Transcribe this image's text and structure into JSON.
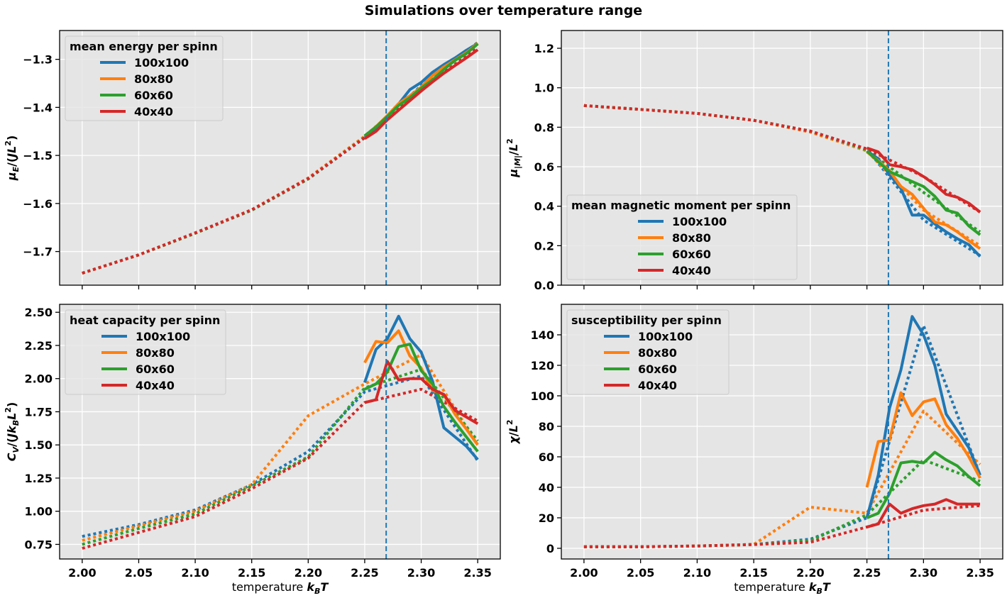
{
  "title": "Simulations over temperature range",
  "colors": {
    "series": [
      "#1f77b4",
      "#ff7f0e",
      "#2ca02c",
      "#d62728"
    ],
    "axes_bg": "#e5e5e5",
    "grid": "#ffffff",
    "vline": "#1f77b4"
  },
  "chart_data": [
    {
      "type": "line",
      "legend_title": "mean energy per spinn",
      "legend_loc": "upper-left",
      "xlabel": "",
      "ylabel": "μ_E/(JL²)",
      "xlim": [
        1.98,
        2.37
      ],
      "ylim": [
        -1.77,
        -1.24
      ],
      "xticks": [
        2.0,
        2.05,
        2.1,
        2.15,
        2.2,
        2.25,
        2.3,
        2.35
      ],
      "xtick_labels_shown": false,
      "yticks": [
        -1.7,
        -1.6,
        -1.5,
        -1.4,
        -1.3
      ],
      "ytick_labels": [
        "−1.7",
        "−1.6",
        "−1.5",
        "−1.4",
        "−1.3"
      ],
      "vline_x": 2.269,
      "grid": true,
      "solid_x": [
        2.25,
        2.26,
        2.27,
        2.28,
        2.29,
        2.3,
        2.31,
        2.32,
        2.33,
        2.34,
        2.35
      ],
      "solid": [
        {
          "name": "100x100",
          "values": [
            -1.462,
            -1.443,
            -1.418,
            -1.393,
            -1.363,
            -1.348,
            -1.327,
            -1.311,
            -1.297,
            -1.281,
            -1.267
          ]
        },
        {
          "name": "80x80",
          "values": [
            -1.46,
            -1.44,
            -1.417,
            -1.392,
            -1.376,
            -1.358,
            -1.334,
            -1.316,
            -1.301,
            -1.286,
            -1.267
          ]
        },
        {
          "name": "60x60",
          "values": [
            -1.459,
            -1.441,
            -1.419,
            -1.396,
            -1.38,
            -1.36,
            -1.343,
            -1.321,
            -1.302,
            -1.288,
            -1.268
          ]
        },
        {
          "name": "40x40",
          "values": [
            -1.465,
            -1.45,
            -1.426,
            -1.406,
            -1.386,
            -1.366,
            -1.347,
            -1.329,
            -1.313,
            -1.297,
            -1.28
          ]
        }
      ],
      "dotted_x": [
        2.0,
        2.05,
        2.1,
        2.15,
        2.2,
        2.25,
        2.3,
        2.35
      ],
      "dotted": [
        {
          "values": [
            -1.745,
            -1.707,
            -1.662,
            -1.614,
            -1.549,
            -1.463,
            -1.355,
            -1.265
          ]
        },
        {
          "values": [
            -1.745,
            -1.707,
            -1.662,
            -1.613,
            -1.547,
            -1.46,
            -1.357,
            -1.266
          ]
        },
        {
          "values": [
            -1.745,
            -1.707,
            -1.662,
            -1.614,
            -1.549,
            -1.462,
            -1.357,
            -1.266
          ]
        },
        {
          "values": [
            -1.745,
            -1.707,
            -1.661,
            -1.613,
            -1.548,
            -1.463,
            -1.362,
            -1.276
          ]
        }
      ]
    },
    {
      "type": "line",
      "legend_title": "mean magnetic moment per spinn",
      "legend_loc": "lower-left",
      "xlabel": "",
      "ylabel": "μ_|M|/L²",
      "xlim": [
        1.98,
        2.37
      ],
      "ylim": [
        0.0,
        1.29
      ],
      "xticks": [
        2.0,
        2.05,
        2.1,
        2.15,
        2.2,
        2.25,
        2.3,
        2.35
      ],
      "xtick_labels_shown": false,
      "yticks": [
        0.0,
        0.2,
        0.4,
        0.6,
        0.8,
        1.0,
        1.2
      ],
      "ytick_labels": [
        "0.0",
        "0.2",
        "0.4",
        "0.6",
        "0.8",
        "1.0",
        "1.2"
      ],
      "vline_x": 2.269,
      "grid": true,
      "solid_x": [
        2.25,
        2.26,
        2.27,
        2.28,
        2.29,
        2.3,
        2.31,
        2.32,
        2.33,
        2.34,
        2.35
      ],
      "solid": [
        {
          "name": "100x100",
          "values": [
            0.68,
            0.64,
            0.56,
            0.49,
            0.355,
            0.355,
            0.31,
            0.27,
            0.235,
            0.205,
            0.145
          ]
        },
        {
          "name": "80x80",
          "values": [
            0.675,
            0.63,
            0.58,
            0.5,
            0.46,
            0.39,
            0.32,
            0.305,
            0.27,
            0.225,
            0.185
          ]
        },
        {
          "name": "60x60",
          "values": [
            0.68,
            0.625,
            0.575,
            0.55,
            0.525,
            0.5,
            0.45,
            0.38,
            0.365,
            0.3,
            0.255
          ]
        },
        {
          "name": "40x40",
          "values": [
            0.695,
            0.675,
            0.61,
            0.6,
            0.585,
            0.55,
            0.51,
            0.46,
            0.445,
            0.415,
            0.37
          ]
        }
      ],
      "dotted_x": [
        2.0,
        2.05,
        2.1,
        2.15,
        2.2,
        2.25,
        2.3,
        2.35
      ],
      "dotted": [
        {
          "values": [
            0.91,
            0.89,
            0.87,
            0.835,
            0.78,
            0.69,
            0.33,
            0.15
          ]
        },
        {
          "values": [
            0.91,
            0.89,
            0.87,
            0.835,
            0.775,
            0.68,
            0.38,
            0.2
          ]
        },
        {
          "values": [
            0.91,
            0.89,
            0.87,
            0.835,
            0.78,
            0.685,
            0.47,
            0.27
          ]
        },
        {
          "values": [
            0.91,
            0.89,
            0.87,
            0.835,
            0.78,
            0.69,
            0.55,
            0.37
          ]
        }
      ]
    },
    {
      "type": "line",
      "legend_title": "heat capacity per spinn",
      "legend_loc": "upper-left",
      "xlabel": "temperature k_BT",
      "ylabel": "C_V/(Jk_BL²)",
      "xlim": [
        1.98,
        2.37
      ],
      "ylim": [
        0.64,
        2.56
      ],
      "xticks": [
        2.0,
        2.05,
        2.1,
        2.15,
        2.2,
        2.25,
        2.3,
        2.35
      ],
      "xtick_labels_shown": true,
      "xtick_labels": [
        "2.00",
        "2.05",
        "2.10",
        "2.15",
        "2.20",
        "2.25",
        "2.30",
        "2.35"
      ],
      "yticks": [
        0.75,
        1.0,
        1.25,
        1.5,
        1.75,
        2.0,
        2.25,
        2.5
      ],
      "ytick_labels": [
        "0.75",
        "1.00",
        "1.25",
        "1.50",
        "1.75",
        "2.00",
        "2.25",
        "2.50"
      ],
      "vline_x": 2.269,
      "grid": true,
      "solid_x": [
        2.25,
        2.26,
        2.27,
        2.28,
        2.29,
        2.3,
        2.31,
        2.32,
        2.33,
        2.34,
        2.35
      ],
      "solid": [
        {
          "name": "100x100",
          "values": [
            1.97,
            2.22,
            2.3,
            2.47,
            2.3,
            2.2,
            1.98,
            1.63,
            1.56,
            1.49,
            1.39
          ]
        },
        {
          "name": "80x80",
          "values": [
            2.12,
            2.28,
            2.27,
            2.36,
            2.17,
            2.08,
            1.91,
            1.88,
            1.73,
            1.62,
            1.5
          ]
        },
        {
          "name": "60x60",
          "values": [
            1.92,
            1.96,
            2.05,
            2.24,
            2.26,
            2.06,
            1.96,
            1.79,
            1.67,
            1.56,
            1.45
          ]
        },
        {
          "name": "40x40",
          "values": [
            1.82,
            1.84,
            2.13,
            1.99,
            2.0,
            2.0,
            1.92,
            1.88,
            1.76,
            1.71,
            1.66
          ]
        }
      ],
      "dotted_x": [
        2.0,
        2.05,
        2.1,
        2.15,
        2.2,
        2.25,
        2.3,
        2.35
      ],
      "dotted": [
        {
          "values": [
            0.81,
            0.9,
            1.01,
            1.2,
            1.45,
            1.9,
            2.02,
            1.38
          ]
        },
        {
          "values": [
            0.78,
            0.89,
            1.0,
            1.2,
            1.72,
            1.96,
            2.18,
            1.5
          ]
        },
        {
          "values": [
            0.75,
            0.87,
            0.98,
            1.19,
            1.41,
            1.93,
            2.07,
            1.53
          ]
        },
        {
          "values": [
            0.72,
            0.84,
            0.96,
            1.17,
            1.4,
            1.82,
            1.92,
            1.68
          ]
        }
      ]
    },
    {
      "type": "line",
      "legend_title": "susceptibility per spinn",
      "legend_loc": "upper-left",
      "xlabel": "temperature k_BT",
      "ylabel": "χ/L²",
      "xlim": [
        1.98,
        2.37
      ],
      "ylim": [
        -7,
        160
      ],
      "xticks": [
        2.0,
        2.05,
        2.1,
        2.15,
        2.2,
        2.25,
        2.3,
        2.35
      ],
      "xtick_labels_shown": true,
      "xtick_labels": [
        "2.00",
        "2.05",
        "2.10",
        "2.15",
        "2.20",
        "2.25",
        "2.30",
        "2.35"
      ],
      "yticks": [
        0,
        20,
        40,
        60,
        80,
        100,
        120,
        140
      ],
      "ytick_labels": [
        "0",
        "20",
        "40",
        "60",
        "80",
        "100",
        "120",
        "140"
      ],
      "vline_x": 2.269,
      "grid": true,
      "solid_x": [
        2.25,
        2.26,
        2.27,
        2.28,
        2.29,
        2.3,
        2.31,
        2.32,
        2.33,
        2.34,
        2.35
      ],
      "solid": [
        {
          "name": "100x100",
          "values": [
            20,
            48,
            92,
            117,
            152,
            140,
            120,
            88,
            77,
            66,
            48
          ]
        },
        {
          "name": "80x80",
          "values": [
            40,
            70,
            71,
            102,
            87,
            96,
            98,
            81,
            72,
            60,
            46
          ]
        },
        {
          "name": "60x60",
          "values": [
            20,
            23,
            36,
            56,
            57,
            56,
            63,
            58,
            54,
            47,
            41
          ]
        },
        {
          "name": "40x40",
          "values": [
            14,
            16,
            29,
            23,
            26,
            28,
            29,
            32,
            29,
            29,
            29
          ]
        }
      ],
      "dotted_x": [
        2.0,
        2.05,
        2.1,
        2.15,
        2.2,
        2.25,
        2.3,
        2.35
      ],
      "dotted": [
        {
          "values": [
            1,
            1,
            1.5,
            2.5,
            6,
            20,
            146,
            48
          ]
        },
        {
          "values": [
            1,
            1,
            1.5,
            2.5,
            27,
            23,
            90,
            55
          ]
        },
        {
          "values": [
            1,
            1,
            1.5,
            2.5,
            5,
            22,
            58,
            44
          ]
        },
        {
          "values": [
            1,
            1,
            1.5,
            2.5,
            4,
            14,
            25,
            28
          ]
        }
      ]
    }
  ]
}
